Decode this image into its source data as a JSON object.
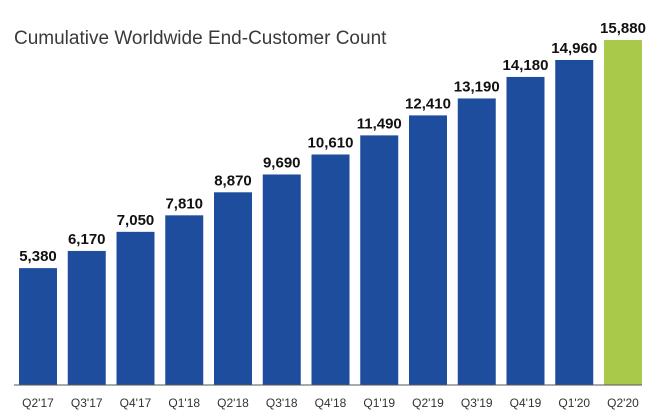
{
  "chart_data": {
    "type": "bar",
    "title": "Cumulative Worldwide End-Customer Count",
    "xlabel": "",
    "ylabel": "",
    "categories": [
      "Q2'17",
      "Q3'17",
      "Q4'17",
      "Q1'18",
      "Q2'18",
      "Q3'18",
      "Q4'18",
      "Q1'19",
      "Q2'19",
      "Q3'19",
      "Q4'19",
      "Q1'20",
      "Q2'20"
    ],
    "values": [
      5380,
      6170,
      7050,
      7810,
      8870,
      9690,
      10610,
      11490,
      12410,
      13190,
      14180,
      14960,
      15880
    ],
    "value_labels": [
      "5,380",
      "6,170",
      "7,050",
      "7,810",
      "8,870",
      "9,690",
      "10,610",
      "11,490",
      "12,410",
      "13,190",
      "14,180",
      "14,960",
      "15,880"
    ],
    "ylim": [
      0,
      15880
    ],
    "grid": false,
    "colors": {
      "bar": "#1f4d9e",
      "highlight": "#a9c94a",
      "axis": "#555555"
    },
    "highlight_index": 12
  }
}
